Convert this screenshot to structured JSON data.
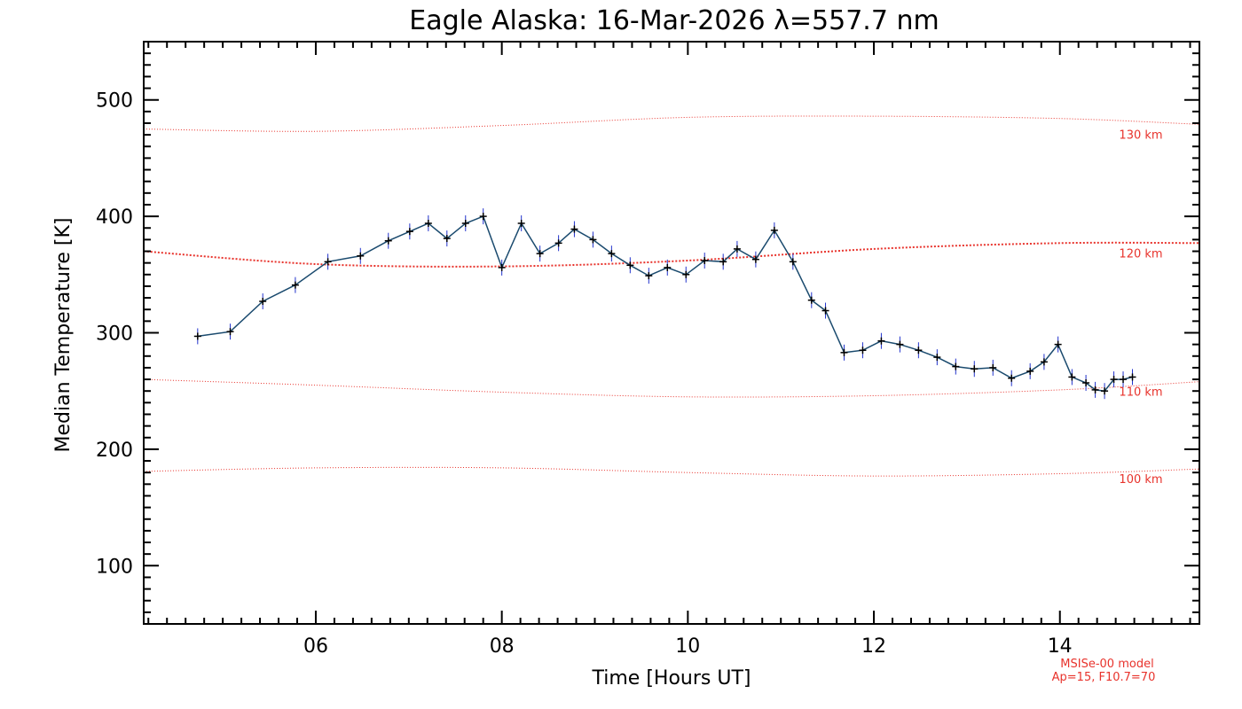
{
  "colors": {
    "series_line": "#1a4a6e",
    "marker": "#000000",
    "errorbar": "#2233cc",
    "reference": "#e8332c",
    "frame": "#000000"
  },
  "chart_data": {
    "type": "line",
    "title": "Eagle Alaska: 16-Mar-2026 λ=557.7 nm",
    "xlabel": "Time [Hours UT]",
    "ylabel": "Median Temperature [K]",
    "xlim": [
      4.15,
      15.5
    ],
    "ylim": [
      50,
      550
    ],
    "x_ticks": [
      6,
      8,
      10,
      12,
      14
    ],
    "x_tick_labels": [
      "06",
      "08",
      "10",
      "12",
      "14"
    ],
    "y_ticks": [
      100,
      200,
      300,
      400,
      500
    ],
    "y_tick_labels": [
      "100",
      "200",
      "300",
      "400",
      "500"
    ],
    "series": [
      {
        "name": "Median Temperature",
        "x": [
          4.73,
          5.08,
          5.43,
          5.78,
          6.13,
          6.48,
          6.78,
          7.01,
          7.21,
          7.41,
          7.61,
          7.8,
          8.0,
          8.21,
          8.41,
          8.61,
          8.78,
          8.98,
          9.18,
          9.38,
          9.58,
          9.78,
          9.98,
          10.18,
          10.38,
          10.53,
          10.73,
          10.93,
          11.13,
          11.33,
          11.48,
          11.68,
          11.88,
          12.08,
          12.28,
          12.48,
          12.68,
          12.88,
          13.08,
          13.28,
          13.48,
          13.68,
          13.83,
          13.98,
          14.13,
          14.28,
          14.38,
          14.48,
          14.58,
          14.68,
          14.78
        ],
        "y": [
          297,
          301,
          327,
          341,
          361,
          366,
          379,
          387,
          394,
          381,
          394,
          400,
          356,
          394,
          368,
          377,
          389,
          380,
          368,
          358,
          349,
          356,
          350,
          362,
          361,
          372,
          363,
          388,
          361,
          328,
          319,
          283,
          285,
          293,
          290,
          285,
          279,
          271,
          269,
          270,
          261,
          267,
          275,
          290,
          262,
          257,
          251,
          250,
          260,
          260,
          262
        ]
      }
    ],
    "reference_curves": [
      {
        "label": "130 km",
        "x": [
          4.15,
          6.0,
          8.0,
          10.0,
          12.0,
          14.0,
          15.5
        ],
        "y": [
          475,
          473,
          478,
          485,
          486,
          484,
          479
        ]
      },
      {
        "label": "120 km",
        "x": [
          4.15,
          6.0,
          8.0,
          10.0,
          12.0,
          14.0,
          15.5
        ],
        "y": [
          370,
          359,
          357,
          362,
          372,
          377,
          377
        ]
      },
      {
        "label": "110 km",
        "x": [
          4.15,
          6.0,
          8.0,
          10.0,
          12.0,
          14.0,
          15.5
        ],
        "y": [
          260,
          255,
          249,
          245,
          246,
          251,
          258
        ]
      },
      {
        "label": "100 km",
        "x": [
          4.15,
          6.0,
          8.0,
          10.0,
          12.0,
          14.0,
          15.5
        ],
        "y": [
          181,
          184,
          184,
          180,
          177,
          179,
          183
        ]
      }
    ],
    "model_note": [
      "MSISe-00 model",
      "Ap=15, F10.7=70"
    ]
  }
}
